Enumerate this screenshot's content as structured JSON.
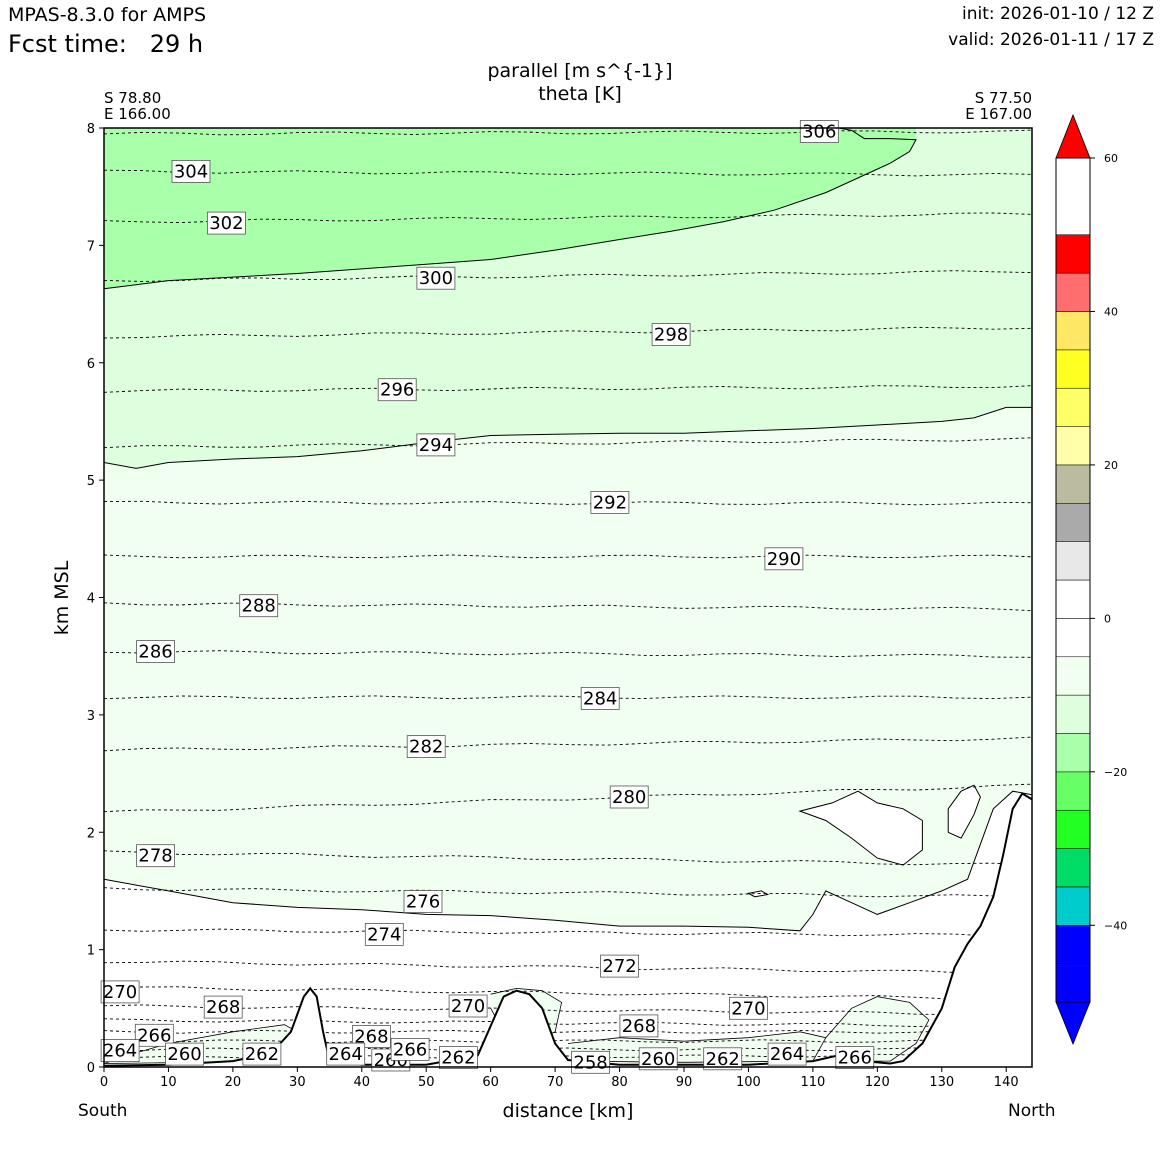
{
  "header": {
    "model": "MPAS-8.3.0 for AMPS",
    "fcst_label": "Fcst time:",
    "fcst_value": "29 h",
    "init": "init: 2026-01-10 / 12 Z",
    "valid": "valid: 2026-01-11 / 17 Z"
  },
  "chart_data": {
    "type": "contour",
    "title_line1": "parallel [m s^{-1}]",
    "title_line2": "theta [K]",
    "left_corner": [
      "S 78.80",
      "E 166.00"
    ],
    "right_corner": [
      "S 77.50",
      "E 167.00"
    ],
    "xlabel": "distance [km]",
    "ylabel": "km MSL",
    "x_left_label": "South",
    "x_right_label": "North",
    "xlim": [
      0,
      144
    ],
    "ylim": [
      0,
      8
    ],
    "xticks": [
      0,
      10,
      20,
      30,
      40,
      50,
      60,
      70,
      80,
      90,
      100,
      110,
      120,
      130,
      140
    ],
    "yticks": [
      0,
      1,
      2,
      3,
      4,
      5,
      6,
      7,
      8
    ],
    "theta_labels": [
      {
        "text": "306",
        "x": 111,
        "y": 7.97
      },
      {
        "text": "304",
        "x": 13.5,
        "y": 7.63
      },
      {
        "text": "302",
        "x": 19,
        "y": 7.19
      },
      {
        "text": "300",
        "x": 51.5,
        "y": 6.72
      },
      {
        "text": "298",
        "x": 88,
        "y": 6.24
      },
      {
        "text": "296",
        "x": 45.5,
        "y": 5.77
      },
      {
        "text": "294",
        "x": 51.5,
        "y": 5.3
      },
      {
        "text": "292",
        "x": 78.5,
        "y": 4.81
      },
      {
        "text": "290",
        "x": 105.5,
        "y": 4.33
      },
      {
        "text": "288",
        "x": 24,
        "y": 3.93
      },
      {
        "text": "286",
        "x": 8,
        "y": 3.54
      },
      {
        "text": "284",
        "x": 77,
        "y": 3.14
      },
      {
        "text": "282",
        "x": 50,
        "y": 2.73
      },
      {
        "text": "280",
        "x": 81.5,
        "y": 2.3
      },
      {
        "text": "278",
        "x": 8,
        "y": 1.8
      },
      {
        "text": "276",
        "x": 49.5,
        "y": 1.41
      },
      {
        "text": "274",
        "x": 43.5,
        "y": 1.13
      },
      {
        "text": "272",
        "x": 80,
        "y": 0.86
      },
      {
        "text": "270",
        "x": 2.5,
        "y": 0.64
      },
      {
        "text": "268",
        "x": 18.5,
        "y": 0.51
      },
      {
        "text": "270",
        "x": 56.5,
        "y": 0.52
      },
      {
        "text": "270",
        "x": 100,
        "y": 0.5
      },
      {
        "text": "268",
        "x": 83,
        "y": 0.35
      },
      {
        "text": "268",
        "x": 41.5,
        "y": 0.26
      },
      {
        "text": "266",
        "x": 7.8,
        "y": 0.27
      },
      {
        "text": "264",
        "x": 2.5,
        "y": 0.14
      },
      {
        "text": "260",
        "x": 12.5,
        "y": 0.11
      },
      {
        "text": "262",
        "x": 24.5,
        "y": 0.11
      },
      {
        "text": "264",
        "x": 37.5,
        "y": 0.11
      },
      {
        "text": "260",
        "x": 44.5,
        "y": 0.06
      },
      {
        "text": "266",
        "x": 47.5,
        "y": 0.15
      },
      {
        "text": "262",
        "x": 55,
        "y": 0.08
      },
      {
        "text": "258",
        "x": 75.5,
        "y": 0.04
      },
      {
        "text": "260",
        "x": 86,
        "y": 0.07
      },
      {
        "text": "262",
        "x": 96,
        "y": 0.07
      },
      {
        "text": "264",
        "x": 106,
        "y": 0.11
      },
      {
        "text": "266",
        "x": 116.5,
        "y": 0.08
      }
    ],
    "colorbar": {
      "range": [
        -50,
        60
      ],
      "levels": [
        -50,
        -45,
        -40,
        -35,
        -30,
        -25,
        -20,
        -15,
        -10,
        -5,
        0,
        5,
        10,
        15,
        20,
        25,
        30,
        35,
        40,
        45,
        50,
        55,
        60
      ],
      "colors": [
        "#0000ff",
        "#0000ff",
        "#00cccc",
        "#00dd66",
        "#22ff22",
        "#66ff66",
        "#aaffaa",
        "#ddffdd",
        "#f0fff0",
        "#ffffff",
        "#ffffff",
        "#e8e8e8",
        "#aaaaaa",
        "#bbbba0",
        "#ffffaa",
        "#ffff66",
        "#ffff22",
        "#ffe866",
        "#ff6e6e",
        "#ff0000"
      ],
      "under_color": "#0000ff",
      "over_color": "#ff0000",
      "ticks": [
        -40,
        -20,
        0,
        20,
        40,
        60
      ],
      "tick_labels": [
        "−40",
        "−20",
        "0",
        "20",
        "40",
        "60"
      ]
    }
  }
}
